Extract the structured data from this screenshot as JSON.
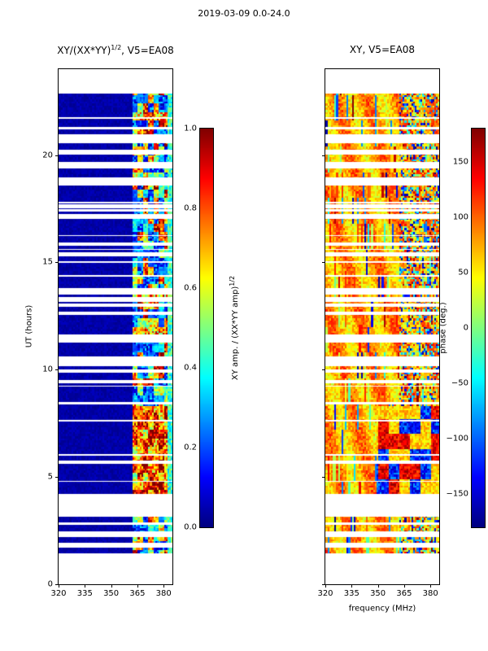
{
  "figure": {
    "title": "2019-03-09 0.0-24.0"
  },
  "axes": {
    "ylabel": "UT (hours)",
    "xlabel": "frequency (MHz)",
    "x_range": [
      320,
      385
    ],
    "y_range": [
      0,
      24
    ],
    "xticks": [
      320,
      335,
      350,
      365,
      380
    ],
    "yticks": [
      0,
      5,
      10,
      15,
      20
    ]
  },
  "observing": {
    "segments_hours": [
      [
        1.45,
        1.7
      ],
      [
        1.95,
        2.2
      ],
      [
        2.45,
        2.75
      ],
      [
        2.9,
        3.15
      ],
      [
        4.2,
        22.85
      ]
    ],
    "gap_seed": 42,
    "thin_gap_count": 48,
    "wide_gap_count": 6
  },
  "chart_data": [
    {
      "type": "heatmap",
      "panel": "left",
      "title_parts": {
        "base": "XY/(XX*YY)",
        "sup": "1/2",
        "rest": ", V5=EA08"
      },
      "colormap": "jet",
      "value_range": [
        0,
        1
      ],
      "x_range": [
        320,
        385
      ],
      "y_range": [
        0,
        24
      ],
      "xticks": [
        320,
        335,
        350,
        365,
        380
      ],
      "yticks": [
        0,
        5,
        10,
        15,
        20
      ],
      "colorbar": {
        "label_parts": {
          "base": "XY amp. / (XX*YY amp)",
          "sup": "1/2"
        },
        "range": [
          0,
          1
        ],
        "ticks": [
          {
            "value": 1.0,
            "label": "1.0"
          },
          {
            "value": 0.8,
            "label": "0.8"
          },
          {
            "value": 0.6,
            "label": "0.6"
          },
          {
            "value": 0.4,
            "label": "0.4"
          },
          {
            "value": 0.2,
            "label": "0.2"
          },
          {
            "value": 0.0,
            "label": "0.0"
          }
        ]
      },
      "content": {
        "background_amp": 0.03,
        "rfi_band_mhz": [
          362,
          385
        ],
        "band_amp_range": [
          0.1,
          1.0
        ],
        "high_amp_hours": [
          4.2,
          8.3
        ],
        "bright_rows_hours": [
          11.35
        ],
        "edge_column_mhz": [
          382,
          385
        ],
        "edge_column_amp": 0.4
      }
    },
    {
      "type": "heatmap",
      "panel": "right",
      "title_parts": {
        "base": "XY, V5=EA08",
        "sup": "",
        "rest": ""
      },
      "colormap": "jet",
      "value_range": [
        -180,
        180
      ],
      "x_range": [
        320,
        385
      ],
      "y_range": [
        0,
        24
      ],
      "xticks": [
        320,
        335,
        350,
        365,
        380
      ],
      "yticks": [
        0,
        5,
        10,
        15,
        20
      ],
      "colorbar": {
        "label_parts": {
          "base": "phase (deg.)",
          "sup": ""
        },
        "range": [
          -180,
          180
        ],
        "ticks": [
          {
            "value": 150,
            "label": "150"
          },
          {
            "value": 100,
            "label": "100"
          },
          {
            "value": 50,
            "label": "50"
          },
          {
            "value": 0,
            "label": "0"
          },
          {
            "value": -50,
            "label": "−50"
          },
          {
            "value": -100,
            "label": "−100"
          },
          {
            "value": -150,
            "label": "−150"
          }
        ]
      },
      "content": {
        "typical_phase_deg": 75,
        "phase_scatter_deg": 30,
        "random_patch_hours": [
          4.2,
          8.3
        ],
        "random_patch_min_mhz": 348
      }
    }
  ]
}
